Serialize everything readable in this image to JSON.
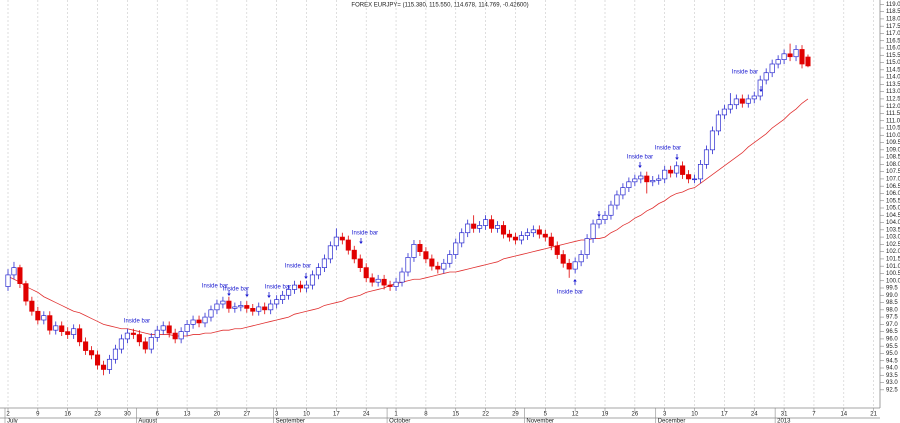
{
  "chart_data": {
    "type": "candlestick",
    "title": "FOREX EURJPY= (115.380, 115.550, 114.678, 114.769, -0.42600)",
    "categories": [
      "2",
      null,
      null,
      null,
      null,
      "9",
      null,
      null,
      null,
      null,
      "16",
      null,
      null,
      null,
      null,
      "23",
      null,
      null,
      null,
      null,
      "30",
      null,
      null,
      null,
      null,
      "6",
      null,
      null,
      null,
      null,
      "13",
      null,
      null,
      null,
      null,
      "20",
      null,
      null,
      null,
      null,
      "27",
      null,
      null,
      null,
      null,
      "3",
      null,
      null,
      null,
      null,
      "10",
      null,
      null,
      null,
      null,
      "17",
      null,
      null,
      null,
      null,
      "24",
      null,
      null,
      null,
      null,
      "1",
      null,
      null,
      null,
      null,
      "8",
      null,
      null,
      null,
      null,
      "15",
      null,
      null,
      null,
      null,
      "22",
      null,
      null,
      null,
      null,
      "29",
      null,
      null,
      null,
      null,
      "5",
      null,
      null,
      null,
      null,
      "12",
      null,
      null,
      null,
      null,
      "19",
      null,
      null,
      null,
      null,
      "26",
      null,
      null,
      null,
      null,
      "3",
      null,
      null,
      null,
      null,
      "10",
      null,
      null,
      null,
      null,
      "17",
      null,
      null,
      null,
      null,
      "24",
      null,
      null,
      null,
      null,
      "31",
      null,
      null,
      null,
      null,
      "7",
      null,
      null,
      null,
      null,
      "14",
      null,
      null,
      null,
      null,
      "21"
    ],
    "months": [
      "July",
      null,
      null,
      null,
      null,
      null,
      null,
      null,
      null,
      null,
      null,
      null,
      null,
      null,
      null,
      null,
      null,
      null,
      null,
      null,
      null,
      null,
      "August",
      null,
      null,
      null,
      null,
      null,
      null,
      null,
      null,
      null,
      null,
      null,
      null,
      null,
      null,
      null,
      null,
      null,
      null,
      null,
      null,
      null,
      null,
      "September",
      null,
      null,
      null,
      null,
      null,
      null,
      null,
      null,
      null,
      null,
      null,
      null,
      null,
      null,
      null,
      null,
      null,
      null,
      "October",
      null,
      null,
      null,
      null,
      null,
      null,
      null,
      null,
      null,
      null,
      null,
      null,
      null,
      null,
      null,
      null,
      null,
      null,
      null,
      null,
      null,
      null,
      "November",
      null,
      null,
      null,
      null,
      null,
      null,
      null,
      null,
      null,
      null,
      null,
      null,
      null,
      null,
      null,
      null,
      null,
      null,
      null,
      null,
      null,
      "December",
      null,
      null,
      null,
      null,
      null,
      null,
      null,
      null,
      null,
      null,
      null,
      null,
      null,
      null,
      null,
      null,
      null,
      null,
      null,
      "2013",
      null,
      null,
      null,
      null,
      null,
      null,
      null,
      null,
      null,
      null,
      null,
      null,
      null,
      null
    ],
    "open": [
      99.6,
      100.4,
      100.9,
      99.8,
      98.6,
      97.9,
      97.3,
      97.6,
      96.6,
      96.9,
      96.5,
      96.3,
      96.7,
      95.8,
      95.2,
      94.9,
      94.2,
      93.9,
      94.6,
      95.3,
      96.0,
      96.4,
      96.3,
      95.8,
      95.3,
      96.1,
      96.6,
      96.9,
      96.4,
      96.0,
      96.5,
      97.0,
      97.3,
      97.1,
      97.5,
      98.0,
      98.4,
      98.6,
      98.1,
      98.2,
      98.3,
      98.1,
      97.9,
      98.2,
      98.0,
      98.4,
      98.7,
      99.0,
      99.4,
      99.7,
      99.5,
      99.7,
      100.4,
      100.9,
      101.5,
      102.4,
      103.0,
      102.8,
      102.1,
      101.5,
      100.9,
      100.2,
      99.9,
      100.1,
      99.7,
      99.6,
      99.9,
      100.6,
      101.6,
      102.5,
      102.0,
      101.5,
      101.0,
      100.8,
      101.2,
      101.8,
      102.6,
      103.3,
      103.9,
      103.6,
      103.8,
      104.2,
      103.6,
      103.8,
      103.2,
      103.0,
      102.8,
      103.1,
      103.3,
      103.5,
      103.2,
      103.0,
      102.4,
      101.8,
      101.2,
      100.8,
      101.3,
      101.8,
      102.9,
      103.9,
      104.2,
      104.5,
      105.2,
      105.9,
      106.4,
      106.8,
      107.0,
      107.2,
      106.8,
      106.9,
      107.0,
      107.6,
      107.4,
      107.9,
      107.3,
      107.0,
      107.0,
      108.0,
      109.0,
      110.3,
      111.4,
      111.8,
      112.1,
      112.5,
      112.2,
      112.5,
      112.7,
      113.8,
      114.3,
      114.9,
      115.2,
      115.6,
      115.4,
      115.9,
      115.38,
      null,
      null,
      null,
      null,
      null,
      null,
      null,
      null,
      null,
      null,
      null
    ],
    "high": [
      100.8,
      101.3,
      101.1,
      100.0,
      98.9,
      98.2,
      97.9,
      97.9,
      97.2,
      97.2,
      96.8,
      97.0,
      97.0,
      96.1,
      95.5,
      95.2,
      94.5,
      94.9,
      95.6,
      96.3,
      96.7,
      96.7,
      96.6,
      96.1,
      96.4,
      96.9,
      97.2,
      97.2,
      96.7,
      96.8,
      97.3,
      97.6,
      97.6,
      97.8,
      98.3,
      98.7,
      98.9,
      98.9,
      98.5,
      98.6,
      98.6,
      98.4,
      98.5,
      98.5,
      98.7,
      99.0,
      99.3,
      99.7,
      100.0,
      100.0,
      100.0,
      100.7,
      101.2,
      101.8,
      102.7,
      103.6,
      103.3,
      103.1,
      102.4,
      101.8,
      101.2,
      100.5,
      100.4,
      100.4,
      100.0,
      100.2,
      100.9,
      101.9,
      102.8,
      102.8,
      102.3,
      101.8,
      101.3,
      101.5,
      102.1,
      102.9,
      103.6,
      104.2,
      104.5,
      104.1,
      104.5,
      104.5,
      104.1,
      104.1,
      103.5,
      103.3,
      103.4,
      103.6,
      103.8,
      103.8,
      103.5,
      103.3,
      102.7,
      102.1,
      101.5,
      101.6,
      102.1,
      103.2,
      104.2,
      104.5,
      104.8,
      105.5,
      106.2,
      106.7,
      107.1,
      107.3,
      107.5,
      107.5,
      107.2,
      107.3,
      107.9,
      107.9,
      108.2,
      108.2,
      107.6,
      107.3,
      108.3,
      109.3,
      110.6,
      111.7,
      112.1,
      112.9,
      112.8,
      112.8,
      112.8,
      113.0,
      114.1,
      114.6,
      115.2,
      115.5,
      115.9,
      116.3,
      116.2,
      116.2,
      115.55,
      null,
      null,
      null,
      null,
      null,
      null,
      null,
      null,
      null,
      null,
      null
    ],
    "low": [
      99.3,
      100.1,
      99.5,
      98.3,
      97.6,
      97.0,
      97.0,
      96.3,
      96.3,
      96.2,
      96.0,
      96.0,
      95.5,
      94.9,
      94.6,
      93.9,
      93.5,
      93.6,
      94.3,
      95.0,
      95.7,
      96.0,
      95.5,
      95.0,
      95.0,
      95.8,
      96.3,
      96.1,
      95.7,
      95.7,
      96.2,
      96.7,
      96.8,
      96.8,
      97.2,
      97.7,
      98.1,
      97.8,
      97.8,
      97.9,
      97.8,
      97.6,
      97.6,
      97.7,
      97.7,
      98.1,
      98.4,
      98.7,
      99.1,
      99.2,
      99.2,
      99.4,
      100.1,
      100.6,
      101.2,
      102.1,
      102.5,
      101.8,
      101.2,
      100.6,
      99.9,
      99.6,
      99.6,
      99.4,
      99.3,
      99.3,
      99.6,
      100.3,
      101.3,
      101.7,
      101.2,
      100.7,
      100.5,
      100.5,
      100.9,
      101.5,
      102.3,
      103.0,
      103.3,
      103.3,
      103.5,
      103.3,
      103.3,
      102.9,
      102.7,
      102.5,
      102.5,
      102.8,
      103.0,
      102.9,
      102.7,
      102.1,
      101.5,
      100.9,
      100.2,
      100.5,
      101.0,
      101.5,
      102.6,
      103.6,
      103.9,
      104.2,
      104.9,
      105.6,
      106.1,
      106.5,
      106.7,
      106.0,
      106.5,
      106.6,
      106.7,
      107.1,
      107.1,
      107.0,
      106.7,
      106.7,
      106.7,
      107.7,
      108.7,
      110.0,
      111.1,
      111.5,
      111.8,
      111.9,
      111.9,
      112.2,
      112.4,
      113.5,
      114.0,
      114.6,
      114.9,
      115.1,
      115.1,
      114.6,
      114.678,
      null,
      null,
      null,
      null,
      null,
      null,
      null,
      null,
      null,
      null,
      null
    ],
    "close": [
      100.4,
      100.9,
      99.8,
      98.6,
      97.9,
      97.3,
      97.6,
      96.6,
      96.9,
      96.5,
      96.3,
      96.7,
      95.8,
      95.2,
      94.9,
      94.2,
      93.9,
      94.6,
      95.3,
      96.0,
      96.4,
      96.3,
      95.8,
      95.3,
      96.1,
      96.6,
      96.9,
      96.4,
      96.0,
      96.5,
      97.0,
      97.3,
      97.1,
      97.5,
      98.0,
      98.4,
      98.6,
      98.1,
      98.2,
      98.3,
      98.1,
      97.9,
      98.2,
      98.0,
      98.4,
      98.7,
      99.0,
      99.4,
      99.7,
      99.5,
      99.7,
      100.4,
      100.9,
      101.5,
      102.4,
      103.0,
      102.8,
      102.1,
      101.5,
      100.9,
      100.2,
      99.9,
      100.1,
      99.7,
      99.6,
      99.9,
      100.6,
      101.6,
      102.5,
      102.0,
      101.5,
      101.0,
      100.8,
      101.2,
      101.8,
      102.6,
      103.3,
      103.9,
      103.6,
      103.8,
      104.2,
      103.6,
      103.8,
      103.2,
      103.0,
      102.8,
      103.1,
      103.3,
      103.5,
      103.2,
      103.0,
      102.4,
      101.8,
      101.2,
      100.8,
      101.3,
      101.8,
      102.9,
      103.9,
      104.2,
      104.5,
      105.2,
      105.9,
      106.4,
      106.8,
      107.0,
      107.2,
      106.8,
      106.9,
      107.0,
      107.6,
      107.4,
      107.9,
      107.3,
      107.0,
      107.0,
      108.0,
      109.0,
      110.3,
      111.4,
      111.8,
      112.1,
      112.5,
      112.2,
      112.5,
      112.7,
      113.8,
      114.3,
      114.9,
      115.2,
      115.6,
      115.4,
      115.9,
      114.9,
      114.769,
      null,
      null,
      null,
      null,
      null,
      null,
      null,
      null,
      null,
      null,
      null
    ],
    "up_color": "#2a2ad0",
    "down_color": "#e00000",
    "moving_average": {
      "color": "#e03030",
      "values": [
        100.3,
        100.1,
        99.9,
        99.6,
        99.4,
        99.2,
        98.9,
        98.7,
        98.5,
        98.3,
        98.1,
        97.9,
        97.8,
        97.6,
        97.4,
        97.2,
        97.0,
        96.9,
        96.8,
        96.7,
        96.7,
        96.6,
        96.5,
        96.4,
        96.3,
        96.3,
        96.3,
        96.3,
        96.2,
        96.2,
        96.2,
        96.3,
        96.3,
        96.4,
        96.4,
        96.5,
        96.6,
        96.6,
        96.7,
        96.7,
        96.8,
        96.9,
        97.0,
        97.1,
        97.2,
        97.3,
        97.4,
        97.5,
        97.7,
        97.8,
        97.9,
        98.0,
        98.1,
        98.3,
        98.4,
        98.5,
        98.6,
        98.8,
        98.9,
        99.0,
        99.2,
        99.3,
        99.4,
        99.5,
        99.7,
        99.8,
        99.9,
        100.0,
        100.1,
        100.1,
        100.2,
        100.3,
        100.4,
        100.5,
        100.6,
        100.6,
        100.7,
        100.8,
        100.9,
        101.0,
        101.1,
        101.2,
        101.3,
        101.5,
        101.6,
        101.7,
        101.8,
        101.9,
        102.0,
        102.1,
        102.2,
        102.3,
        102.4,
        102.5,
        102.6,
        102.7,
        102.8,
        102.8,
        102.9,
        102.9,
        103.0,
        103.3,
        103.5,
        103.8,
        104.0,
        104.3,
        104.5,
        104.8,
        105.0,
        105.3,
        105.5,
        105.8,
        106.0,
        106.1,
        106.3,
        106.4,
        106.7,
        107.0,
        107.3,
        107.6,
        107.9,
        108.2,
        108.5,
        108.8,
        109.2,
        109.5,
        109.8,
        110.1,
        110.5,
        110.8,
        111.1,
        111.5,
        111.8,
        112.2,
        112.5,
        null,
        null,
        null,
        null,
        null,
        null,
        null,
        null,
        null,
        null,
        null
      ]
    },
    "annotations": [
      "Inside bar",
      "Inside bar",
      "Inside bar",
      "Inside bar",
      "Inside bar",
      "Inside bar",
      "Inside bar",
      "Inside bar",
      "Inside bar",
      "Inside bar"
    ],
    "annotation_color": "#1a1ad0",
    "ylim": [
      91.8,
      119.3
    ],
    "yticks": [
      92.5,
      {
        "value": 93,
        "label": "93.0"
      },
      93.5,
      {
        "value": 94,
        "label": "94.0"
      },
      94.5,
      {
        "value": 95,
        "label": "95.0"
      },
      95.5,
      {
        "value": 96,
        "label": "96.0"
      },
      96.5,
      {
        "value": 97,
        "label": "97.0"
      },
      97.5,
      {
        "value": 98,
        "label": "98.0"
      },
      98.5,
      {
        "value": 99,
        "label": "99.0"
      },
      99.5,
      {
        "value": 100,
        "label": "100.0"
      },
      100.5,
      {
        "value": 101,
        "label": "101.0"
      },
      101.5,
      {
        "value": 102,
        "label": "102.0"
      },
      102.5,
      {
        "value": 103,
        "label": "103.0"
      },
      103.5,
      {
        "value": 104,
        "label": "104.0"
      },
      104.5,
      {
        "value": 105,
        "label": "105.0"
      },
      105.5,
      {
        "value": 106,
        "label": "106.0"
      },
      106.5,
      {
        "value": 107,
        "label": "107.0"
      },
      107.5,
      {
        "value": 108,
        "label": "108.0"
      },
      108.5,
      {
        "value": 109,
        "label": "109.0"
      },
      109.5,
      {
        "value": 110,
        "label": "110.0"
      },
      110.5,
      {
        "value": 111,
        "label": "111.0"
      },
      111.5,
      {
        "value": 112,
        "label": "112.0"
      },
      112.5,
      {
        "value": 113,
        "label": "113.0"
      },
      113.5,
      {
        "value": 114,
        "label": "114.0"
      },
      114.5,
      {
        "value": 115,
        "label": "115.0"
      },
      115.5,
      {
        "value": 116,
        "label": "116.0"
      },
      116.5,
      {
        "value": 117,
        "label": "117.0"
      },
      117.5,
      {
        "value": 118,
        "label": "118.0"
      },
      118.5,
      {
        "value": 119,
        "label": "119.0"
      }
    ],
    "grid": true
  }
}
